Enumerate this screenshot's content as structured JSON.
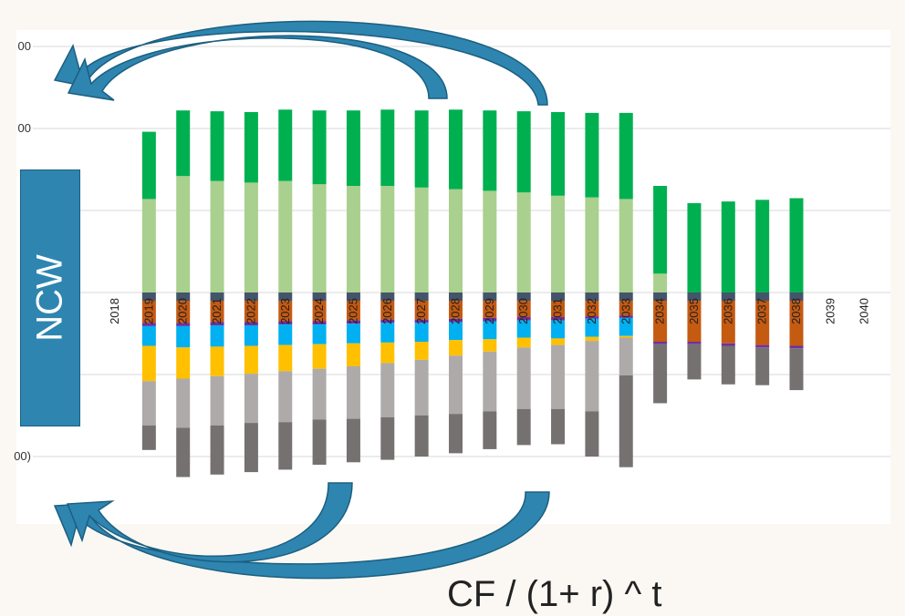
{
  "chart_data": {
    "type": "bar",
    "stacked": true,
    "categories": [
      "2018",
      "2019",
      "2020",
      "2021",
      "2022",
      "2023",
      "2024",
      "2025",
      "2026",
      "2027",
      "2028",
      "2029",
      "2030",
      "2031",
      "2032",
      "2033",
      "2034",
      "2035",
      "2036",
      "2037",
      "2038",
      "2039",
      "2040"
    ],
    "y_tick_labels": [
      "00",
      "00",
      "",
      "",
      "0)",
      "00)"
    ],
    "ylim": [
      -2.0,
      3.0
    ],
    "grid": true,
    "series": [
      {
        "color": "#a9d08e",
        "values": [
          0,
          1.14,
          1.42,
          1.36,
          1.34,
          1.36,
          1.32,
          1.3,
          1.3,
          1.28,
          1.26,
          1.24,
          1.22,
          1.18,
          1.16,
          1.14,
          0.23,
          0,
          0,
          0,
          0,
          0,
          0
        ]
      },
      {
        "color": "#00b050",
        "values": [
          0,
          0.82,
          0.8,
          0.85,
          0.86,
          0.87,
          0.9,
          0.92,
          0.93,
          0.94,
          0.97,
          0.98,
          0.99,
          1.02,
          1.03,
          1.05,
          1.07,
          1.09,
          1.11,
          1.13,
          1.15,
          0,
          0
        ]
      },
      {
        "color": "#44546a",
        "values": [
          0,
          -0.1,
          -0.1,
          -0.1,
          -0.1,
          -0.1,
          -0.1,
          -0.1,
          -0.1,
          -0.1,
          -0.1,
          -0.1,
          -0.1,
          -0.1,
          -0.1,
          -0.1,
          -0.1,
          -0.1,
          -0.1,
          -0.1,
          -0.1,
          0,
          0
        ]
      },
      {
        "color": "#c55a11",
        "values": [
          0,
          -0.27,
          -0.27,
          -0.26,
          -0.26,
          -0.25,
          -0.25,
          -0.24,
          -0.23,
          -0.23,
          -0.22,
          -0.21,
          -0.2,
          -0.2,
          -0.19,
          -0.18,
          -0.5,
          -0.5,
          -0.52,
          -0.54,
          -0.55,
          0,
          0
        ]
      },
      {
        "color": "#7030a0",
        "values": [
          0,
          -0.04,
          -0.04,
          -0.04,
          -0.04,
          -0.04,
          -0.04,
          -0.04,
          -0.04,
          -0.04,
          -0.04,
          -0.04,
          -0.04,
          -0.04,
          -0.03,
          -0.03,
          -0.03,
          -0.03,
          -0.03,
          -0.03,
          -0.03,
          0,
          0
        ]
      },
      {
        "color": "#00b0f0",
        "values": [
          0,
          -0.24,
          -0.26,
          -0.26,
          -0.25,
          -0.25,
          -0.24,
          -0.24,
          -0.24,
          -0.23,
          -0.22,
          -0.22,
          -0.21,
          -0.22,
          -0.22,
          -0.22,
          0,
          0,
          0,
          0,
          0,
          0,
          0
        ]
      },
      {
        "color": "#ffc000",
        "values": [
          0,
          -0.43,
          -0.38,
          -0.36,
          -0.34,
          -0.32,
          -0.3,
          -0.28,
          -0.25,
          -0.22,
          -0.19,
          -0.15,
          -0.12,
          -0.08,
          -0.05,
          -0.02,
          0,
          0,
          0,
          0,
          0,
          0,
          0
        ]
      },
      {
        "color": "#aeaaaa",
        "values": [
          0,
          -0.54,
          -0.6,
          -0.6,
          -0.6,
          -0.62,
          -0.62,
          -0.64,
          -0.66,
          -0.68,
          -0.71,
          -0.73,
          -0.75,
          -0.78,
          -0.86,
          -0.46,
          0,
          0,
          0,
          0,
          0,
          0,
          0
        ]
      },
      {
        "color": "#767171",
        "values": [
          0,
          -0.3,
          -0.6,
          -0.6,
          -0.6,
          -0.58,
          -0.55,
          -0.53,
          -0.52,
          -0.5,
          -0.48,
          -0.46,
          -0.44,
          -0.43,
          -0.55,
          -1.12,
          -0.72,
          -0.43,
          -0.47,
          -0.46,
          -0.51,
          0,
          0
        ]
      }
    ]
  },
  "annotations": {
    "left_box_label": "NCW",
    "formula": "CF / (1+ r) ^ t"
  }
}
